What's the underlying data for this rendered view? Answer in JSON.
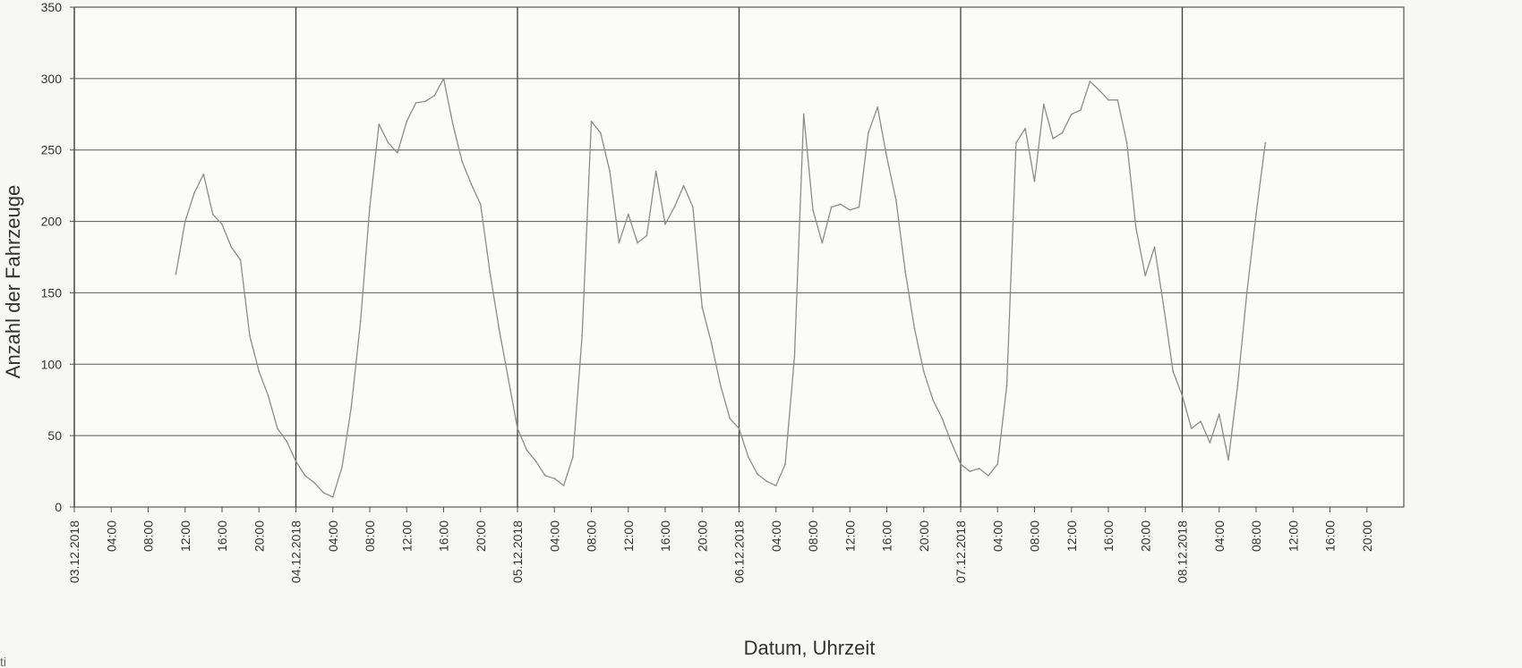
{
  "chart_data": {
    "type": "line",
    "title": "",
    "xlabel": "Datum, Uhrzeit",
    "ylabel": "Anzahl der Fahrzeuge",
    "ylim": [
      0,
      350
    ],
    "yticks": [
      0,
      50,
      100,
      150,
      200,
      250,
      300,
      350
    ],
    "xlim": [
      0,
      144
    ],
    "x_tick_labels": [
      "03.12.2018",
      "04:00",
      "08:00",
      "12:00",
      "16:00",
      "20:00",
      "04.12.2018",
      "04:00",
      "08:00",
      "12:00",
      "16:00",
      "20:00",
      "05.12.2018",
      "04:00",
      "08:00",
      "12:00",
      "16:00",
      "20:00",
      "06.12.2018",
      "04:00",
      "08:00",
      "12:00",
      "16:00",
      "20:00",
      "07.12.2018",
      "04:00",
      "08:00",
      "12:00",
      "16:00",
      "20:00",
      "08.12.2018",
      "04:00",
      "08:00",
      "12:00",
      "16:00",
      "20:00"
    ],
    "grid": true,
    "series": [
      {
        "points": [
          [
            11,
            163
          ],
          [
            12,
            200
          ],
          [
            13,
            220
          ],
          [
            14,
            233
          ],
          [
            15,
            205
          ],
          [
            16,
            198
          ],
          [
            17,
            182
          ],
          [
            18,
            173
          ],
          [
            19,
            120
          ],
          [
            20,
            95
          ],
          [
            21,
            78
          ],
          [
            22,
            55
          ],
          [
            23,
            46
          ],
          [
            24,
            32
          ],
          [
            25,
            22
          ],
          [
            26,
            17
          ],
          [
            27,
            10
          ],
          [
            28,
            7
          ],
          [
            29,
            28
          ],
          [
            30,
            70
          ],
          [
            31,
            130
          ],
          [
            32,
            210
          ],
          [
            33,
            268
          ],
          [
            34,
            255
          ],
          [
            35,
            248
          ],
          [
            36,
            270
          ],
          [
            37,
            283
          ],
          [
            38,
            284
          ],
          [
            39,
            288
          ],
          [
            40,
            300
          ],
          [
            41,
            268
          ],
          [
            42,
            242
          ],
          [
            43,
            226
          ],
          [
            44,
            212
          ],
          [
            45,
            165
          ],
          [
            46,
            125
          ],
          [
            47,
            90
          ],
          [
            48,
            55
          ],
          [
            49,
            40
          ],
          [
            50,
            32
          ],
          [
            51,
            22
          ],
          [
            52,
            20
          ],
          [
            53,
            15
          ],
          [
            54,
            35
          ],
          [
            55,
            120
          ],
          [
            56,
            270
          ],
          [
            57,
            262
          ],
          [
            58,
            235
          ],
          [
            59,
            185
          ],
          [
            60,
            205
          ],
          [
            61,
            185
          ],
          [
            62,
            190
          ],
          [
            63,
            235
          ],
          [
            64,
            198
          ],
          [
            65,
            210
          ],
          [
            66,
            225
          ],
          [
            67,
            210
          ],
          [
            68,
            140
          ],
          [
            69,
            115
          ],
          [
            70,
            85
          ],
          [
            71,
            62
          ],
          [
            72,
            55
          ],
          [
            73,
            35
          ],
          [
            74,
            23
          ],
          [
            75,
            18
          ],
          [
            76,
            15
          ],
          [
            77,
            30
          ],
          [
            78,
            105
          ],
          [
            79,
            275
          ],
          [
            80,
            208
          ],
          [
            81,
            185
          ],
          [
            82,
            210
          ],
          [
            83,
            212
          ],
          [
            84,
            208
          ],
          [
            85,
            210
          ],
          [
            86,
            262
          ],
          [
            87,
            280
          ],
          [
            88,
            245
          ],
          [
            89,
            215
          ],
          [
            90,
            165
          ],
          [
            91,
            125
          ],
          [
            92,
            95
          ],
          [
            93,
            75
          ],
          [
            94,
            62
          ],
          [
            95,
            45
          ],
          [
            96,
            30
          ],
          [
            97,
            25
          ],
          [
            98,
            27
          ],
          [
            99,
            22
          ],
          [
            100,
            30
          ],
          [
            101,
            85
          ],
          [
            102,
            255
          ],
          [
            103,
            265
          ],
          [
            104,
            228
          ],
          [
            105,
            282
          ],
          [
            106,
            258
          ],
          [
            107,
            262
          ],
          [
            108,
            275
          ],
          [
            109,
            278
          ],
          [
            110,
            298
          ],
          [
            111,
            292
          ],
          [
            112,
            285
          ],
          [
            113,
            285
          ],
          [
            114,
            255
          ],
          [
            115,
            195
          ],
          [
            116,
            162
          ],
          [
            117,
            182
          ],
          [
            118,
            140
          ],
          [
            119,
            95
          ],
          [
            120,
            78
          ],
          [
            121,
            55
          ],
          [
            122,
            60
          ],
          [
            123,
            45
          ],
          [
            124,
            65
          ],
          [
            125,
            33
          ],
          [
            126,
            85
          ],
          [
            127,
            150
          ],
          [
            128,
            205
          ],
          [
            129,
            255
          ]
        ]
      }
    ]
  },
  "corner_note": "ti"
}
